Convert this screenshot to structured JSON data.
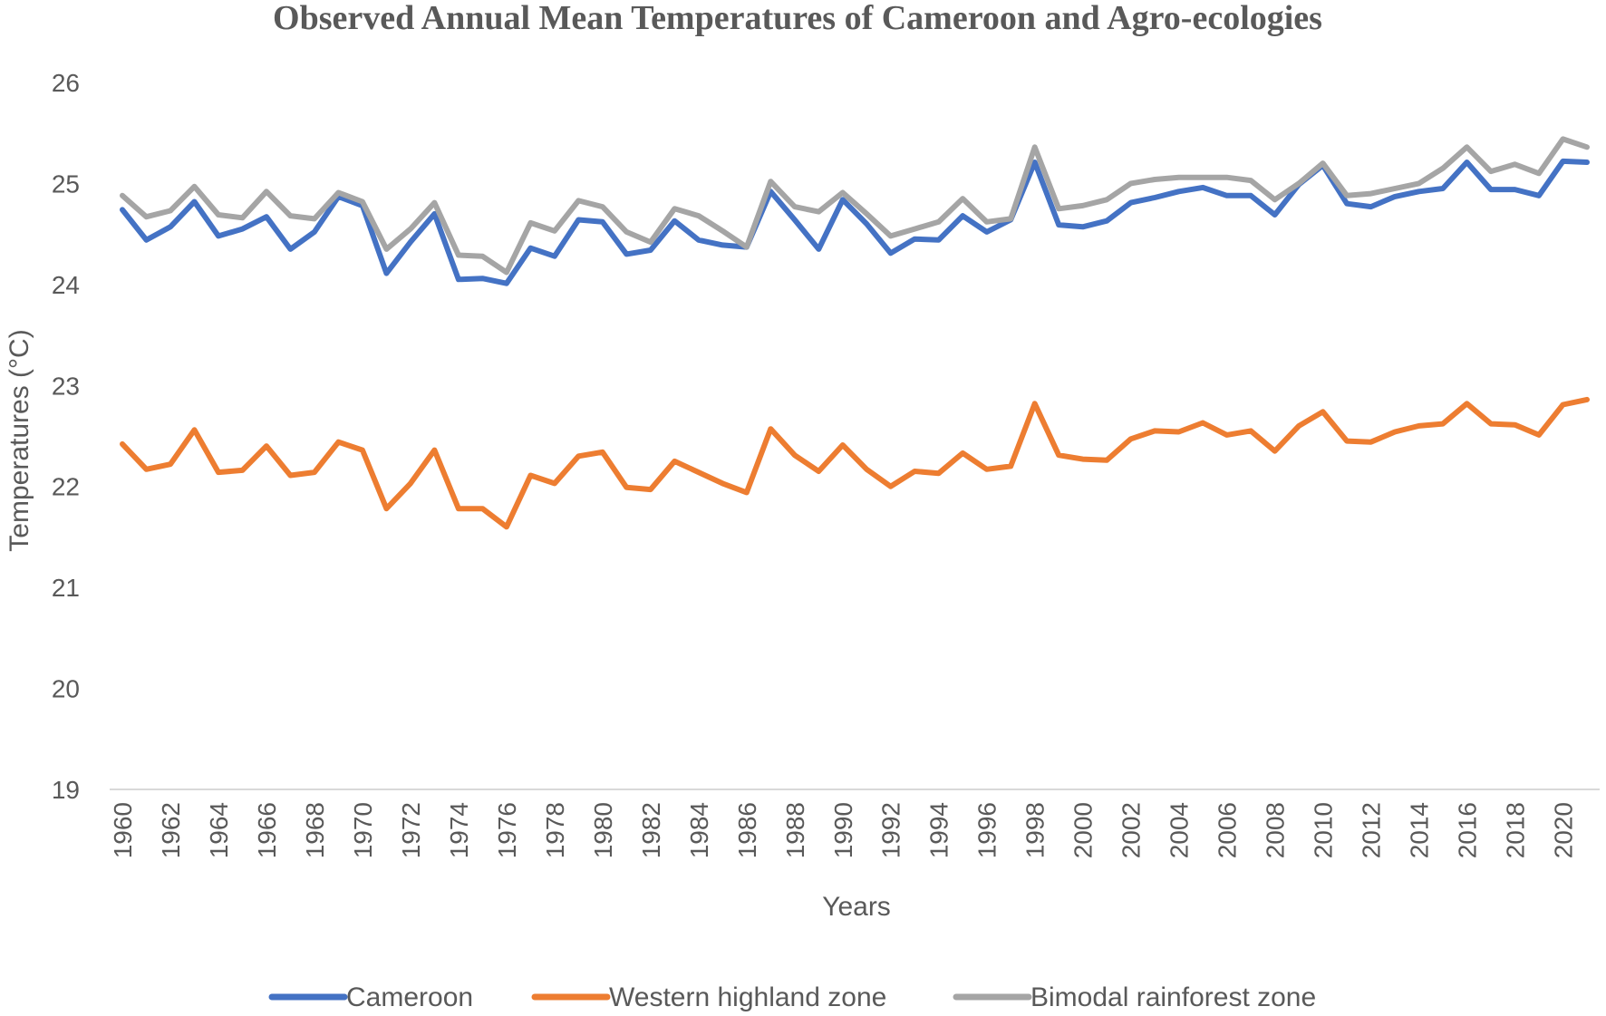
{
  "chart_data": {
    "type": "line",
    "title": "Observed Annual Mean Temperatures of Cameroon and Agro-ecologies",
    "xlabel": "Years",
    "ylabel": "Temperatures (°C)",
    "ylim": [
      19,
      26
    ],
    "yticks": [
      "19",
      "20",
      "21",
      "22",
      "23",
      "24",
      "25",
      "26"
    ],
    "xtick_labels": [
      "1960",
      "1962",
      "1964",
      "1966",
      "1968",
      "1970",
      "1972",
      "1974",
      "1976",
      "1978",
      "1980",
      "1982",
      "1984",
      "1986",
      "1988",
      "1990",
      "1992",
      "1994",
      "1996",
      "1998",
      "2000",
      "2002",
      "2004",
      "2006",
      "2008",
      "2010",
      "2012",
      "2014",
      "2016",
      "2018",
      "2020"
    ],
    "legend_position": "bottom",
    "grid": false,
    "x": [
      1960,
      1961,
      1962,
      1963,
      1964,
      1965,
      1966,
      1967,
      1968,
      1969,
      1970,
      1971,
      1972,
      1973,
      1974,
      1975,
      1976,
      1977,
      1978,
      1979,
      1980,
      1981,
      1982,
      1983,
      1984,
      1985,
      1986,
      1987,
      1988,
      1989,
      1990,
      1991,
      1992,
      1993,
      1994,
      1995,
      1996,
      1997,
      1998,
      1999,
      2000,
      2001,
      2002,
      2003,
      2004,
      2005,
      2006,
      2007,
      2008,
      2009,
      2010,
      2011,
      2012,
      2013,
      2014,
      2015,
      2016,
      2017,
      2018,
      2019,
      2020,
      2021
    ],
    "series": [
      {
        "name": "Cameroon",
        "color": "#4472C4",
        "values": [
          24.74,
          24.44,
          24.57,
          24.82,
          24.48,
          24.55,
          24.67,
          24.35,
          24.52,
          24.87,
          24.78,
          24.11,
          24.42,
          24.7,
          24.05,
          24.06,
          24.01,
          24.36,
          24.28,
          24.64,
          24.62,
          24.3,
          24.34,
          24.63,
          24.44,
          24.39,
          24.37,
          24.92,
          24.64,
          24.35,
          24.84,
          24.6,
          24.31,
          24.45,
          24.44,
          24.68,
          24.52,
          24.64,
          25.21,
          24.59,
          24.57,
          24.63,
          24.81,
          24.86,
          24.92,
          24.96,
          24.88,
          24.88,
          24.69,
          24.99,
          25.18,
          24.8,
          24.77,
          24.87,
          24.92,
          24.95,
          25.21,
          24.94,
          24.94,
          24.88,
          25.22,
          25.21
        ]
      },
      {
        "name": "Western highland zone",
        "color": "#ED7D31",
        "values": [
          22.42,
          22.17,
          22.22,
          22.56,
          22.14,
          22.16,
          22.4,
          22.11,
          22.14,
          22.44,
          22.36,
          21.78,
          22.03,
          22.36,
          21.78,
          21.78,
          21.6,
          22.11,
          22.03,
          22.3,
          22.34,
          21.99,
          21.97,
          22.25,
          22.14,
          22.03,
          21.94,
          22.57,
          22.31,
          22.15,
          22.41,
          22.17,
          22.0,
          22.15,
          22.13,
          22.33,
          22.17,
          22.2,
          22.82,
          22.31,
          22.27,
          22.26,
          22.47,
          22.55,
          22.54,
          22.63,
          22.51,
          22.55,
          22.35,
          22.6,
          22.74,
          22.45,
          22.44,
          22.54,
          22.6,
          22.62,
          22.82,
          22.62,
          22.61,
          22.51,
          22.81,
          22.86
        ]
      },
      {
        "name": "Bimodal rainforest zone",
        "color": "#A5A5A5",
        "values": [
          24.88,
          24.67,
          24.73,
          24.97,
          24.69,
          24.66,
          24.92,
          24.68,
          24.65,
          24.91,
          24.82,
          24.35,
          24.55,
          24.81,
          24.29,
          24.28,
          24.12,
          24.61,
          24.53,
          24.83,
          24.77,
          24.52,
          24.42,
          24.75,
          24.68,
          24.53,
          24.37,
          25.02,
          24.77,
          24.72,
          24.91,
          24.7,
          24.48,
          24.55,
          24.62,
          24.85,
          24.62,
          24.65,
          25.36,
          24.75,
          24.78,
          24.84,
          25.0,
          25.04,
          25.06,
          25.06,
          25.06,
          25.03,
          24.84,
          25.0,
          25.2,
          24.88,
          24.9,
          24.95,
          25.0,
          25.15,
          25.36,
          25.12,
          25.19,
          25.1,
          25.44,
          25.36
        ]
      }
    ]
  }
}
